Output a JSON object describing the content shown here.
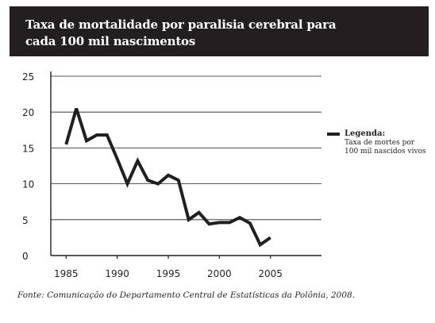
{
  "title_lines": [
    "Taxa de mortalidade por paralisia cerebral para",
    "cada 100 mil nascimentos"
  ],
  "source": "Fonte: Comunicação do Departamento Central de Estatísticas da Polônia, 2008.",
  "colors": {
    "title_bg": "#231f20",
    "ink": "#231f20",
    "grid": "#231f20"
  },
  "chart_data": {
    "type": "line",
    "title": "Taxa de mortalidade por paralisia cerebral para cada 100 mil nascimentos",
    "xlabel": "",
    "ylabel": "",
    "xlim": [
      1983.5,
      2010
    ],
    "ylim": [
      0,
      25
    ],
    "x_ticks": [
      1985,
      1990,
      1995,
      2000,
      2005
    ],
    "y_ticks": [
      0,
      5,
      10,
      15,
      20,
      25
    ],
    "grid": "horizontal",
    "legend_position": "right",
    "legend": {
      "title": "Legenda:",
      "entry": "Taxa de mortes por 100 mil nascidos vivos"
    },
    "series": [
      {
        "name": "Taxa de mortes por 100 mil nascidos vivos",
        "x": [
          1985,
          1986,
          1987,
          1988,
          1989,
          1990,
          1991,
          1992,
          1993,
          1994,
          1995,
          1996,
          1997,
          1998,
          1999,
          2000,
          2001,
          2002,
          2003,
          2004,
          2005
        ],
        "y": [
          15.5,
          20.5,
          16.0,
          16.8,
          16.8,
          13.5,
          10.0,
          13.2,
          10.5,
          10.0,
          11.2,
          10.5,
          5.0,
          6.0,
          4.4,
          4.6,
          4.6,
          5.3,
          4.5,
          1.5,
          2.5
        ]
      }
    ]
  }
}
